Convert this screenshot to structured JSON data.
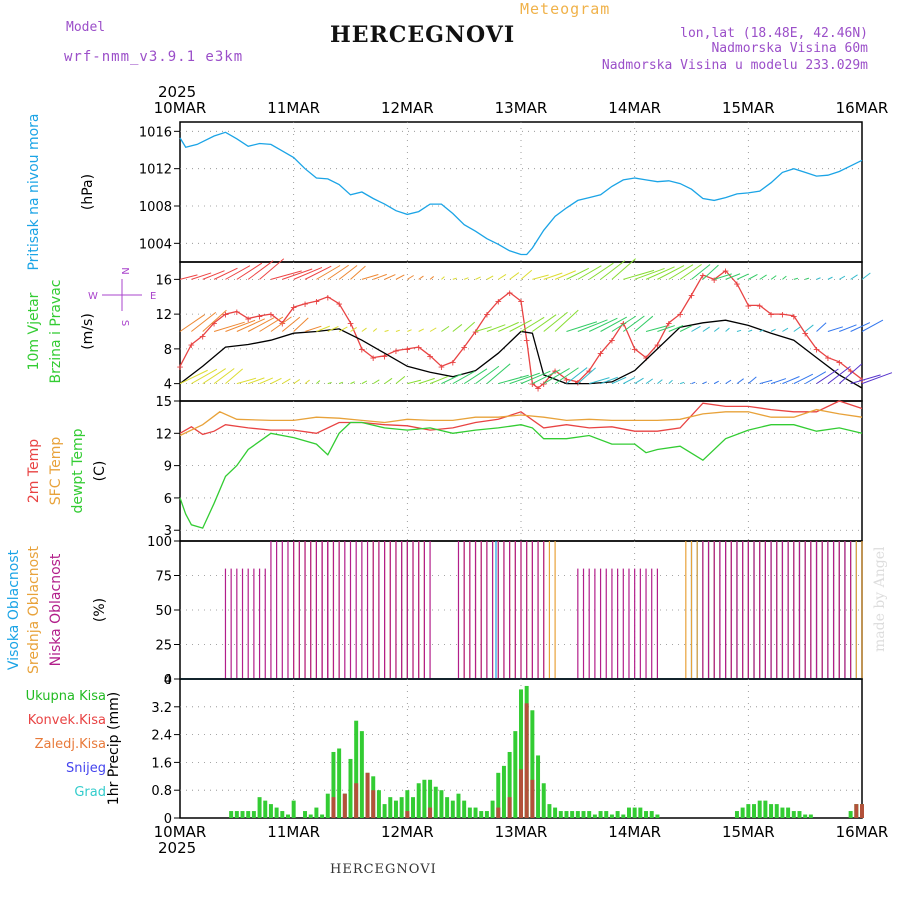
{
  "header": {
    "model_label": "Model",
    "model_name": "wrf-nmm_v3.9.1 e3km",
    "title": "HERCEGNOVI",
    "meteogram": "Meteogram",
    "coords": "lon,lat (18.48E, 42.46N)",
    "altitude": "Nadmorska Visina 60m",
    "altitude_model": "Nadmorska Visina u modelu 233.029m",
    "bottom_label": "HERCEGNOVI",
    "credit": "made by Angel"
  },
  "colors": {
    "pressure": "#1ba4e6",
    "temp2m": "#e84343",
    "sfc": "#e8a23a",
    "dewpt": "#33cc33",
    "wind_mag": "#e84343",
    "wind_line": "#000000",
    "high_cloud": "#1ba4e6",
    "mid_cloud": "#e8a23a",
    "low_cloud": "#b21e8a",
    "grid": "#888888",
    "compass": "#aa44cc"
  },
  "chart_data": {
    "type": "meteogram",
    "x_start": "2025-03-10",
    "x_end": "2025-03-16",
    "year_label": "2025",
    "day_labels": [
      "10MAR",
      "11MAR",
      "12MAR",
      "13MAR",
      "14MAR",
      "15MAR",
      "16MAR"
    ],
    "panels": [
      {
        "id": "pressure",
        "ylabel_lines": [
          "Pritisak na nivou mora"
        ],
        "unit": "(hPa)",
        "ylim": [
          1002,
          1017
        ],
        "yticks": [
          1004,
          1008,
          1012,
          1016
        ],
        "series": [
          {
            "name": "Pritisak na nivou mora",
            "x": [
              0,
              0.05,
              0.15,
              0.3,
              0.4,
              0.5,
              0.6,
              0.7,
              0.8,
              0.9,
              1.0,
              1.1,
              1.2,
              1.3,
              1.4,
              1.5,
              1.6,
              1.7,
              1.8,
              1.9,
              2.0,
              2.1,
              2.2,
              2.3,
              2.4,
              2.5,
              2.6,
              2.7,
              2.8,
              2.9,
              3.0,
              3.05,
              3.1,
              3.2,
              3.3,
              3.4,
              3.5,
              3.6,
              3.7,
              3.8,
              3.9,
              4.0,
              4.1,
              4.2,
              4.3,
              4.4,
              4.5,
              4.6,
              4.7,
              4.8,
              4.9,
              5.0,
              5.1,
              5.2,
              5.3,
              5.4,
              5.5,
              5.6,
              5.7,
              5.8,
              5.9,
              6.0
            ],
            "values": [
              1015.3,
              1014.3,
              1014.6,
              1015.5,
              1015.9,
              1015.2,
              1014.4,
              1014.7,
              1014.6,
              1013.9,
              1013.2,
              1012.0,
              1011.0,
              1010.9,
              1010.3,
              1009.2,
              1009.5,
              1008.8,
              1008.2,
              1007.5,
              1007.1,
              1007.4,
              1008.2,
              1008.2,
              1007.2,
              1006.0,
              1005.3,
              1004.5,
              1003.9,
              1003.2,
              1002.8,
              1002.8,
              1003.5,
              1005.4,
              1006.9,
              1007.8,
              1008.6,
              1008.9,
              1009.2,
              1010.1,
              1010.8,
              1011.0,
              1010.8,
              1010.6,
              1010.7,
              1010.4,
              1009.8,
              1008.8,
              1008.6,
              1008.9,
              1009.3,
              1009.4,
              1009.6,
              1010.5,
              1011.6,
              1012.0,
              1011.6,
              1011.2,
              1011.3,
              1011.7,
              1012.3,
              1012.9
            ]
          }
        ]
      },
      {
        "id": "wind",
        "ylabel_lines": [
          "10m Vjetar",
          "Brzina i Pravac"
        ],
        "unit": "(m/s)",
        "ylim": [
          2,
          18
        ],
        "yticks": [
          4,
          8,
          12,
          16
        ],
        "compass": {
          "w": "W",
          "e": "E",
          "n": "N",
          "s": "S"
        },
        "series": [
          {
            "name": "max speed",
            "x": [
              0,
              0.1,
              0.2,
              0.3,
              0.4,
              0.5,
              0.6,
              0.7,
              0.8,
              0.9,
              1.0,
              1.1,
              1.2,
              1.3,
              1.4,
              1.5,
              1.6,
              1.7,
              1.8,
              1.9,
              2.0,
              2.1,
              2.2,
              2.3,
              2.4,
              2.5,
              2.6,
              2.7,
              2.8,
              2.9,
              3.0,
              3.05,
              3.1,
              3.15,
              3.2,
              3.3,
              3.4,
              3.5,
              3.6,
              3.7,
              3.8,
              3.9,
              4.0,
              4.1,
              4.2,
              4.3,
              4.4,
              4.5,
              4.6,
              4.7,
              4.8,
              4.9,
              5.0,
              5.1,
              5.2,
              5.3,
              5.4,
              5.5,
              5.6,
              5.7,
              5.8,
              5.9,
              6.0
            ],
            "values": [
              6.0,
              8.5,
              9.5,
              11.0,
              12.0,
              12.3,
              11.5,
              11.8,
              12.0,
              11.0,
              12.8,
              13.2,
              13.5,
              14.0,
              13.2,
              11.0,
              8.0,
              7.0,
              7.2,
              7.8,
              8.0,
              8.2,
              7.2,
              6.0,
              6.5,
              8.2,
              10.0,
              12.0,
              13.5,
              14.5,
              13.5,
              9.0,
              4.0,
              3.5,
              4.0,
              5.5,
              4.5,
              4.2,
              5.5,
              7.5,
              9.0,
              11.0,
              8.0,
              7.0,
              8.5,
              11.0,
              12.0,
              14.2,
              16.5,
              16.0,
              17.0,
              15.5,
              13.0,
              13.0,
              12.0,
              12.0,
              11.8,
              9.8,
              8.0,
              7.0,
              6.5,
              5.5,
              4.5
            ]
          },
          {
            "name": "mean speed",
            "x": [
              0,
              0.2,
              0.4,
              0.6,
              0.8,
              1.0,
              1.2,
              1.4,
              1.6,
              1.8,
              2.0,
              2.2,
              2.4,
              2.6,
              2.8,
              3.0,
              3.1,
              3.2,
              3.4,
              3.6,
              3.8,
              4.0,
              4.2,
              4.4,
              4.6,
              4.8,
              5.0,
              5.2,
              5.4,
              5.6,
              5.8,
              6.0
            ],
            "values": [
              4.0,
              6.0,
              8.2,
              8.5,
              9.0,
              9.8,
              10.0,
              10.3,
              9.0,
              7.5,
              6.0,
              5.3,
              4.8,
              5.5,
              7.5,
              10.0,
              9.8,
              5.0,
              4.0,
              4.0,
              4.2,
              5.5,
              8.0,
              10.5,
              11.0,
              11.3,
              10.7,
              9.8,
              9.0,
              7.0,
              5.0,
              3.5
            ]
          }
        ]
      },
      {
        "id": "temp",
        "ylabel_lines": [
          "2m Temp",
          "SFC Temp",
          "dewpt Temp"
        ],
        "unit": "(C)",
        "ylim": [
          2,
          15
        ],
        "yticks": [
          3,
          6,
          9,
          12,
          15
        ],
        "series": [
          {
            "name": "2m Temp",
            "color_key": "temp2m",
            "x": [
              0,
              0.1,
              0.2,
              0.3,
              0.4,
              0.6,
              0.8,
              1.0,
              1.2,
              1.4,
              1.6,
              1.8,
              2.0,
              2.2,
              2.4,
              2.6,
              2.8,
              3.0,
              3.2,
              3.4,
              3.6,
              3.8,
              4.0,
              4.2,
              4.4,
              4.6,
              4.8,
              5.0,
              5.2,
              5.4,
              5.6,
              5.8,
              6.0
            ],
            "values": [
              12.0,
              12.6,
              11.9,
              12.2,
              12.8,
              12.5,
              12.3,
              12.3,
              12.0,
              13.0,
              13.0,
              12.8,
              12.7,
              12.3,
              12.5,
              13.0,
              13.3,
              14.0,
              12.5,
              12.8,
              12.5,
              12.6,
              12.2,
              12.2,
              12.5,
              14.8,
              14.5,
              14.5,
              14.2,
              14.0,
              14.0,
              15.0,
              14.3
            ]
          },
          {
            "name": "SFC Temp",
            "color_key": "sfc",
            "x": [
              0,
              0.2,
              0.35,
              0.5,
              0.8,
              1.0,
              1.2,
              1.4,
              1.6,
              1.8,
              2.0,
              2.2,
              2.4,
              2.6,
              2.8,
              3.0,
              3.2,
              3.4,
              3.6,
              3.8,
              4.0,
              4.2,
              4.4,
              4.6,
              4.8,
              5.0,
              5.2,
              5.4,
              5.6,
              5.8,
              6.0
            ],
            "values": [
              11.8,
              12.8,
              14.0,
              13.3,
              13.2,
              13.2,
              13.5,
              13.4,
              13.2,
              13.0,
              13.3,
              13.2,
              13.2,
              13.5,
              13.5,
              13.7,
              13.5,
              13.2,
              13.3,
              13.2,
              13.2,
              13.2,
              13.3,
              13.8,
              14.0,
              14.0,
              13.5,
              13.5,
              14.2,
              13.8,
              13.5
            ]
          },
          {
            "name": "dewpt Temp",
            "color_key": "dewpt",
            "x": [
              0,
              0.05,
              0.1,
              0.2,
              0.3,
              0.4,
              0.5,
              0.6,
              0.8,
              1.0,
              1.2,
              1.3,
              1.4,
              1.5,
              1.6,
              1.8,
              2.0,
              2.2,
              2.4,
              2.6,
              2.8,
              3.0,
              3.1,
              3.2,
              3.4,
              3.6,
              3.8,
              4.0,
              4.1,
              4.2,
              4.4,
              4.6,
              4.8,
              5.0,
              5.2,
              5.4,
              5.6,
              5.8,
              6.0
            ],
            "values": [
              6.0,
              4.5,
              3.5,
              3.2,
              5.5,
              8.0,
              9.0,
              10.5,
              12.0,
              11.6,
              11.0,
              10.0,
              12.0,
              13.0,
              13.0,
              12.5,
              12.3,
              12.5,
              12.0,
              12.3,
              12.5,
              12.8,
              12.5,
              11.5,
              11.5,
              11.8,
              11.0,
              11.0,
              10.2,
              10.5,
              10.8,
              9.5,
              11.5,
              12.3,
              12.8,
              12.8,
              12.2,
              12.5,
              12.0
            ]
          }
        ]
      },
      {
        "id": "cloud",
        "ylabel_lines": [
          "Visoka Oblacnost",
          "Srednja Oblacnost",
          "Niska Oblacnost"
        ],
        "unit": "(%)",
        "ylim": [
          0,
          100
        ],
        "yticks": [
          0,
          25,
          50,
          75,
          100
        ],
        "series": [
          {
            "name": "Visoka Oblacnost",
            "color_key": "high_cloud",
            "x_from": [
              1.95,
              2.78,
              4.5
            ],
            "x_to": [
              2.0,
              2.82,
              5.98
            ],
            "values": [
              100,
              100,
              100
            ]
          },
          {
            "name": "Srednja Oblacnost",
            "color_key": "mid_cloud",
            "x_from": [
              1.0,
              1.7,
              2.5,
              4.45
            ],
            "x_to": [
              1.4,
              2.15,
              3.3,
              6.0
            ],
            "values": [
              100,
              100,
              100,
              100
            ]
          },
          {
            "name": "Niska Oblacnost",
            "color_key": "low_cloud",
            "x_from": [
              0.4,
              0.8,
              1.25,
              2.45,
              3.5,
              4.6
            ],
            "x_to": [
              0.75,
              1.3,
              2.2,
              3.2,
              4.2,
              5.9
            ],
            "values": [
              80,
              100,
              100,
              100,
              80,
              100
            ]
          }
        ]
      },
      {
        "id": "precip",
        "ylabel_lines": [
          "1hr Precip (mm)"
        ],
        "unit": "",
        "ylim": [
          0,
          4
        ],
        "yticks": [
          0,
          0.8,
          1.6,
          2.4,
          3.2,
          4
        ],
        "legend": [
          "Ukupna Kisa",
          "Konvek.Kisa",
          "Zaledj.Kisa",
          "Snijeg",
          "Grad"
        ],
        "series": [
          {
            "name": "Ukupna Kisa",
            "x": [
              0.45,
              0.5,
              0.55,
              0.6,
              0.65,
              0.7,
              0.75,
              0.8,
              0.85,
              0.9,
              0.95,
              1.0,
              1.1,
              1.15,
              1.2,
              1.25,
              1.3,
              1.35,
              1.4,
              1.45,
              1.5,
              1.55,
              1.6,
              1.65,
              1.7,
              1.75,
              1.8,
              1.85,
              1.9,
              1.95,
              2.0,
              2.05,
              2.1,
              2.15,
              2.2,
              2.25,
              2.3,
              2.35,
              2.4,
              2.45,
              2.5,
              2.55,
              2.6,
              2.65,
              2.7,
              2.75,
              2.8,
              2.85,
              2.9,
              2.95,
              3.0,
              3.05,
              3.1,
              3.15,
              3.2,
              3.25,
              3.3,
              3.35,
              3.4,
              3.45,
              3.5,
              3.55,
              3.6,
              3.65,
              3.7,
              3.75,
              3.8,
              3.85,
              3.9,
              3.95,
              4.0,
              4.05,
              4.1,
              4.15,
              4.2,
              4.9,
              4.95,
              5.0,
              5.05,
              5.1,
              5.15,
              5.2,
              5.25,
              5.3,
              5.35,
              5.4,
              5.45,
              5.5,
              5.55,
              5.9,
              5.95,
              6.0
            ],
            "values": [
              0.2,
              0.2,
              0.2,
              0.2,
              0.2,
              0.6,
              0.5,
              0.4,
              0.3,
              0.2,
              0.1,
              0.5,
              0.2,
              0.1,
              0.3,
              0.1,
              0.7,
              1.9,
              2.0,
              0.7,
              1.7,
              2.8,
              2.5,
              1.3,
              1.2,
              0.8,
              0.4,
              0.6,
              0.5,
              0.6,
              0.8,
              0.6,
              1.0,
              1.1,
              1.1,
              0.9,
              0.8,
              0.6,
              0.5,
              0.7,
              0.5,
              0.3,
              0.3,
              0.2,
              0.2,
              0.5,
              1.3,
              1.5,
              1.9,
              2.5,
              3.7,
              3.8,
              3.1,
              1.8,
              1.0,
              0.4,
              0.3,
              0.2,
              0.2,
              0.2,
              0.2,
              0.2,
              0.2,
              0.1,
              0.2,
              0.2,
              0.1,
              0.2,
              0.1,
              0.3,
              0.3,
              0.3,
              0.2,
              0.2,
              0.1,
              0.2,
              0.3,
              0.4,
              0.4,
              0.5,
              0.5,
              0.4,
              0.4,
              0.3,
              0.3,
              0.2,
              0.2,
              0.1,
              0.1,
              0.2,
              0.4,
              0.4
            ]
          },
          {
            "name": "Konvek.Kisa",
            "x": [
              1.35,
              1.45,
              1.55,
              1.65,
              1.7,
              2.0,
              2.2,
              2.8,
              2.9,
              3.0,
              3.05,
              3.1,
              5.95,
              6.0
            ],
            "values": [
              0.6,
              0.7,
              1.0,
              1.3,
              0.8,
              0.2,
              0.3,
              0.3,
              0.6,
              1.4,
              3.3,
              1.1,
              0.4,
              0.4
            ]
          }
        ]
      }
    ]
  }
}
